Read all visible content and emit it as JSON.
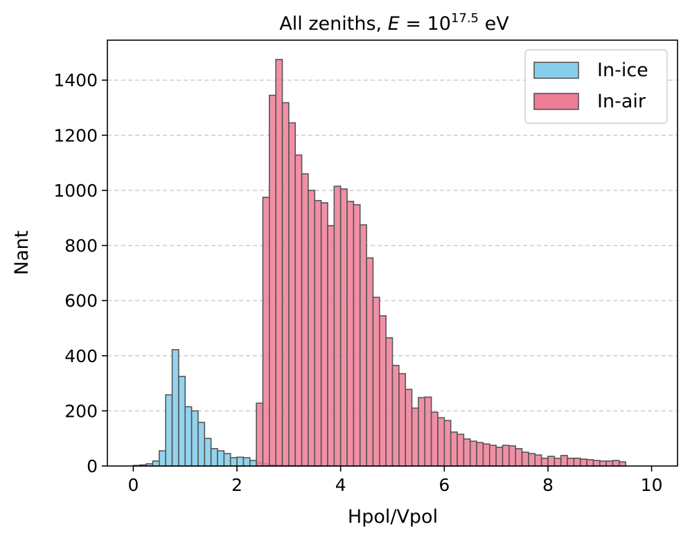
{
  "chart_data": {
    "type": "bar",
    "title_prefix": "All zeniths, ",
    "title_var": "E",
    "title_eq": " = 10",
    "title_sup": "17.5",
    "title_suffix": " eV",
    "xlabel": "Hpol/Vpol",
    "ylabel": "Nant",
    "xlim": [
      -0.5,
      10.5
    ],
    "ylim": [
      0,
      1545
    ],
    "xticks": [
      0,
      2,
      4,
      6,
      8,
      10
    ],
    "yticks": [
      0,
      200,
      400,
      600,
      800,
      1000,
      1200,
      1400
    ],
    "grid": "y-dashed",
    "legend_position": "top-right",
    "bin_width": 0.125,
    "x_start": 0.0,
    "series": [
      {
        "name": "In-ice",
        "color": "#87CEEB",
        "values": [
          2,
          4,
          8,
          18,
          55,
          258,
          422,
          325,
          215,
          200,
          158,
          100,
          63,
          55,
          45,
          30,
          32,
          30,
          20,
          12,
          8,
          5,
          3,
          2,
          2,
          1,
          1,
          1,
          1,
          0,
          0,
          0,
          0,
          0,
          0,
          0,
          0,
          0,
          0,
          0,
          0,
          0,
          0,
          0,
          0,
          0,
          0,
          0,
          0,
          0,
          0,
          0,
          0,
          0,
          0,
          0,
          0,
          0,
          0,
          0,
          0,
          0,
          0,
          0,
          0,
          0,
          0,
          0,
          0,
          0,
          0,
          0,
          0,
          0,
          0,
          0,
          0,
          0,
          0,
          0
        ]
      },
      {
        "name": "In-air",
        "color": "#EE7C95",
        "values": [
          0,
          0,
          0,
          0,
          0,
          0,
          0,
          0,
          0,
          0,
          0,
          0,
          0,
          0,
          0,
          0,
          0,
          0,
          0,
          228,
          975,
          1345,
          1475,
          1318,
          1245,
          1128,
          1060,
          1000,
          963,
          955,
          872,
          1015,
          1005,
          960,
          948,
          875,
          755,
          612,
          545,
          465,
          365,
          335,
          278,
          210,
          248,
          250,
          195,
          175,
          165,
          123,
          115,
          98,
          90,
          85,
          80,
          75,
          68,
          75,
          73,
          63,
          50,
          45,
          40,
          28,
          35,
          28,
          38,
          28,
          28,
          25,
          23,
          20,
          18,
          18,
          20,
          15
        ]
      }
    ]
  }
}
